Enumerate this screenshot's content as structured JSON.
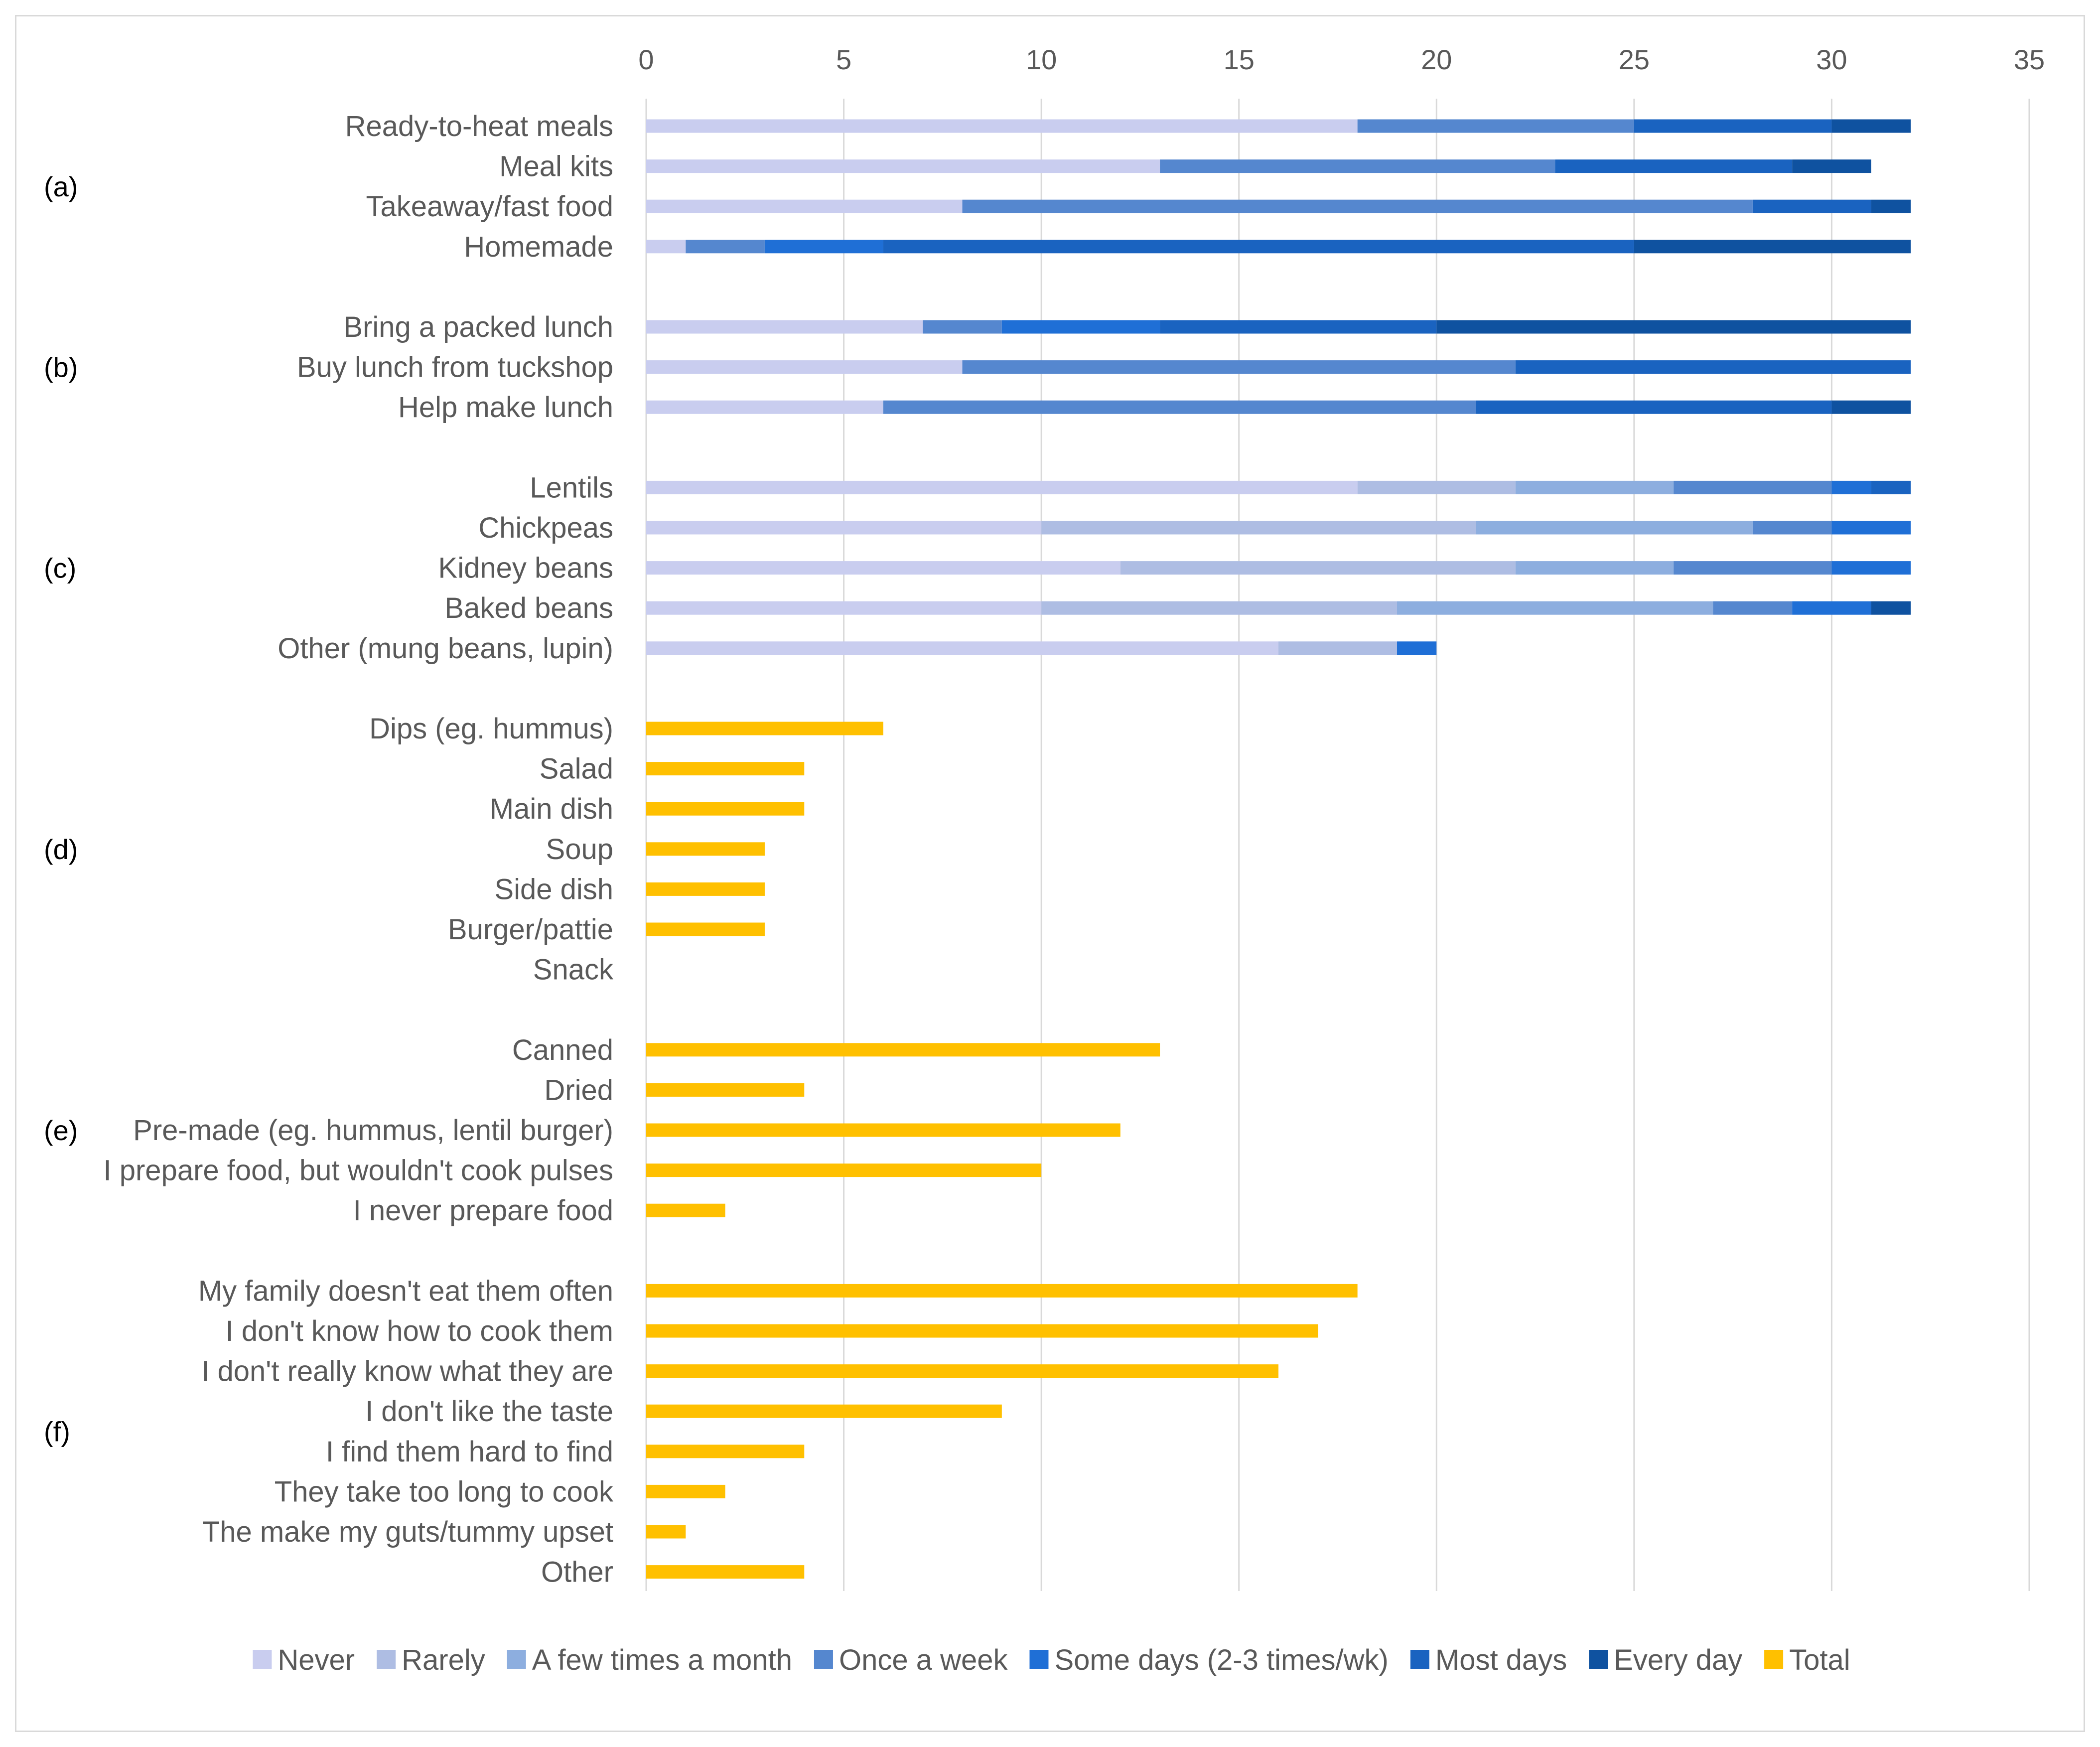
{
  "chart_data": {
    "type": "bar",
    "orientation": "horizontal",
    "stacked": true,
    "xlim": [
      0,
      35
    ],
    "x_ticks": [
      0,
      5,
      10,
      15,
      20,
      25,
      30,
      35
    ],
    "x_axis_position": "top",
    "grid": true,
    "legend_position": "bottom",
    "series": [
      {
        "name": "Never",
        "color": "#c9cdef"
      },
      {
        "name": "Rarely",
        "color": "#aebde3"
      },
      {
        "name": "A few times a month",
        "color": "#8daedf"
      },
      {
        "name": "Once a week",
        "color": "#5587cf"
      },
      {
        "name": "Some days (2-3 times/wk)",
        "color": "#1f6fd6"
      },
      {
        "name": "Most days",
        "color": "#1a63c0"
      },
      {
        "name": "Every day",
        "color": "#0f52a0"
      },
      {
        "name": "Total",
        "color": "#ffc000"
      }
    ],
    "groups": [
      {
        "label": "(a)",
        "categories": [
          {
            "label": "Ready-to-heat meals",
            "values": [
              18,
              0,
              0,
              7,
              0,
              5,
              2
            ]
          },
          {
            "label": "Meal kits",
            "values": [
              13,
              0,
              0,
              10,
              0,
              6,
              2
            ]
          },
          {
            "label": "Takeaway/fast food",
            "values": [
              8,
              0,
              0,
              20,
              0,
              3,
              1
            ]
          },
          {
            "label": "Homemade",
            "values": [
              1,
              0,
              0,
              2,
              3,
              19,
              7
            ]
          }
        ]
      },
      {
        "label": "(b)",
        "categories": [
          {
            "label": "Bring a packed lunch",
            "values": [
              7,
              0,
              0,
              2,
              4,
              7,
              12
            ]
          },
          {
            "label": "Buy lunch from tuckshop",
            "values": [
              8,
              0,
              0,
              14,
              0,
              10,
              0
            ]
          },
          {
            "label": "Help make lunch",
            "values": [
              6,
              0,
              0,
              15,
              0,
              9,
              2
            ]
          }
        ]
      },
      {
        "label": "(c)",
        "categories": [
          {
            "label": "Lentils",
            "values": [
              18,
              4,
              4,
              4,
              1,
              1,
              0
            ]
          },
          {
            "label": "Chickpeas",
            "values": [
              10,
              11,
              7,
              2,
              2,
              0,
              0
            ]
          },
          {
            "label": "Kidney beans",
            "values": [
              12,
              10,
              4,
              4,
              2,
              0,
              0
            ]
          },
          {
            "label": "Baked beans",
            "values": [
              10,
              9,
              8,
              2,
              2,
              0,
              1
            ]
          },
          {
            "label": "Other (mung beans, lupin)",
            "values": [
              16,
              3,
              0,
              0,
              1,
              0,
              0
            ]
          }
        ]
      },
      {
        "label": "(d)",
        "categories": [
          {
            "label": "Dips (eg. hummus)",
            "total": 6
          },
          {
            "label": "Salad",
            "total": 4
          },
          {
            "label": "Main dish",
            "total": 4
          },
          {
            "label": "Soup",
            "total": 3
          },
          {
            "label": "Side dish",
            "total": 3
          },
          {
            "label": "Burger/pattie",
            "total": 3
          },
          {
            "label": "Snack",
            "total": 0
          }
        ]
      },
      {
        "label": "(e)",
        "categories": [
          {
            "label": "Canned",
            "total": 13
          },
          {
            "label": "Dried",
            "total": 4
          },
          {
            "label": "Pre-made (eg. hummus, lentil burger)",
            "total": 12
          },
          {
            "label": "I prepare food, but wouldn't cook pulses",
            "total": 10
          },
          {
            "label": "I never prepare food",
            "total": 2
          }
        ]
      },
      {
        "label": "(f)",
        "categories": [
          {
            "label": "My family doesn't eat them often",
            "total": 18
          },
          {
            "label": "I don't know how to cook them",
            "total": 17
          },
          {
            "label": "I don't really know what they are",
            "total": 16
          },
          {
            "label": "I don't like the taste",
            "total": 9
          },
          {
            "label": "I find them hard to find",
            "total": 4
          },
          {
            "label": "They take too long to cook",
            "total": 2
          },
          {
            "label": "The make my guts/tummy upset",
            "total": 1
          },
          {
            "label": "Other",
            "total": 4
          }
        ]
      }
    ]
  }
}
